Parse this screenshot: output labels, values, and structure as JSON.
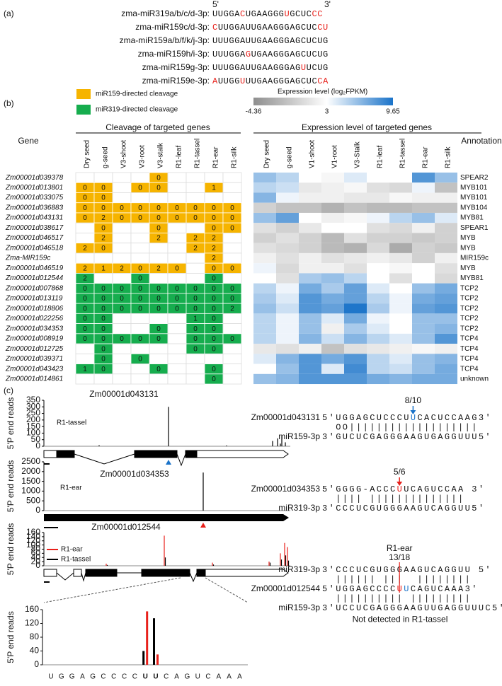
{
  "panel_a": {
    "label": "(a)",
    "five_prime": "5'",
    "three_prime": "3'",
    "highlight_color": "#e8201a",
    "rows": [
      {
        "name": "zma-miR319a/b/c/d-3p:",
        "sequence": "UUGGACUGAAGGGUGCUCCC",
        "highlight": [
          5,
          13,
          18,
          19
        ]
      },
      {
        "name": "zma-miR159c/d-3p:",
        "sequence": "CUUGGAUUGAAGGGAGCUCCU",
        "highlight": [
          0,
          19,
          20
        ]
      },
      {
        "name": "zma-miR159a/b/f/k/j-3p:",
        "sequence": "UUUGGAUUGAAGGGAGCUCUG",
        "highlight": []
      },
      {
        "name": "zma-miR159h/i-3p:",
        "sequence": "UUUGGAGUGAAGGGAGCUCUG",
        "highlight": [
          6
        ]
      },
      {
        "name": "zma-miR159g-3p:",
        "sequence": "UUUGGAUUGAAGGGAGUUCUG",
        "highlight": [
          16
        ]
      },
      {
        "name": "zma-miR159e-3p:",
        "sequence": "AUUGGUUUGAAGGGAGCUCCA",
        "highlight": [
          0,
          5,
          19,
          20
        ]
      }
    ]
  },
  "panel_b": {
    "label": "(b)",
    "legend": [
      {
        "label": "miR159-directed cleavage",
        "color": "#f6b400"
      },
      {
        "label": "miR319-directed cleavage",
        "color": "#16ad4e"
      }
    ],
    "scale": {
      "title": "Expression level (log₂FPKM)",
      "min": -4.36,
      "mid": 3,
      "max": 9.65,
      "colors": [
        "#8e8e8e",
        "#ffffff",
        "#1a73c9"
      ]
    },
    "gene_header": "Gene",
    "cleavage_header": "Cleavage of targeted genes",
    "expression_header": "Expression level of targeted genes",
    "annotation_header": "Annotation",
    "cleavage_columns": [
      "Dry seed",
      "g-seed",
      "V3-shoot",
      "V3-root",
      "V3-stalk",
      "R1-leaf",
      "R1-tassel",
      "R1-ear",
      "R1-silk"
    ],
    "expression_columns": [
      "Dry seed",
      "g-seed",
      "V1-shoot",
      "V1-root",
      "V3-Stalk",
      "R1-leaf",
      "R1-tassel",
      "R1-ear",
      "R1-silk"
    ],
    "rows": [
      {
        "gene": "Zm00001d039378",
        "color": "#f6b400",
        "cleavage": [
          null,
          null,
          null,
          null,
          0,
          null,
          null,
          null,
          null
        ],
        "expression": [
          6,
          5,
          3,
          2.5,
          4,
          3,
          3,
          8,
          6
        ],
        "annotation": "SPEAR2"
      },
      {
        "gene": "Zm00001d013801",
        "color": "#f6b400",
        "cleavage": [
          0,
          0,
          null,
          0,
          0,
          null,
          null,
          1,
          null
        ],
        "expression": [
          5,
          4.5,
          1.5,
          2,
          2.5,
          1,
          0.5,
          3.5,
          -1
        ],
        "annotation": "MYB101"
      },
      {
        "gene": "Zm00001d033075",
        "color": "#f6b400",
        "cleavage": [
          0,
          0,
          null,
          null,
          null,
          null,
          null,
          null,
          null
        ],
        "expression": [
          6.5,
          3.5,
          2,
          2,
          1.5,
          1.5,
          2.5,
          2,
          2
        ],
        "annotation": "MYB101"
      },
      {
        "gene": "Zm00001d036883",
        "color": "#f6b400",
        "cleavage": [
          0,
          0,
          0,
          0,
          0,
          0,
          0,
          0,
          0
        ],
        "expression": [
          0,
          -1,
          -1,
          -2,
          -1,
          -1.5,
          -1.5,
          -1,
          -1
        ],
        "annotation": "MYB104"
      },
      {
        "gene": "Zm00001d043131",
        "color": "#f6b400",
        "cleavage": [
          0,
          2,
          0,
          0,
          0,
          0,
          0,
          0,
          0
        ],
        "expression": [
          6,
          7.5,
          3,
          2,
          2.5,
          3.5,
          5,
          6,
          4
        ],
        "annotation": "MYB81"
      },
      {
        "gene": "Zm00001d038617",
        "color": "#f6b400",
        "cleavage": [
          null,
          0,
          null,
          null,
          0,
          null,
          null,
          0,
          0
        ],
        "expression": [
          1,
          0,
          1.5,
          3,
          3,
          1,
          0.5,
          2,
          0
        ],
        "annotation": "SPEAR1"
      },
      {
        "gene": "Zm00001d046517",
        "color": "#f6b400",
        "cleavage": [
          null,
          2,
          null,
          null,
          2,
          null,
          2,
          2,
          null
        ],
        "expression": [
          0,
          1,
          0,
          -1.5,
          1,
          0,
          0,
          -0.5,
          0
        ],
        "annotation": "MYB"
      },
      {
        "gene": "Zm00001d046518",
        "color": "#f6b400",
        "cleavage": [
          2,
          0,
          null,
          null,
          null,
          null,
          2,
          2,
          null
        ],
        "expression": [
          1,
          0.5,
          0,
          -1.5,
          -2,
          0.5,
          -2.5,
          0,
          -0.5
        ],
        "annotation": "MYB"
      },
      {
        "gene": "Zma-MIR159c",
        "color": "#f6b400",
        "cleavage": [
          null,
          null,
          null,
          null,
          null,
          null,
          null,
          2,
          null
        ],
        "expression": [
          2,
          1,
          2,
          1,
          1.5,
          2,
          1.5,
          0,
          2
        ],
        "annotation": "MIR159c"
      },
      {
        "gene": "Zm00001d046519",
        "color": "#f6b400",
        "cleavage": [
          2,
          1,
          2,
          0,
          2,
          0,
          null,
          0,
          0
        ],
        "expression": [
          3.5,
          0.5,
          2,
          2,
          1,
          3,
          2.5,
          3,
          1
        ],
        "annotation": "MYB"
      },
      {
        "gene": "Zm00001d012544",
        "color": "#16ad4e",
        "cleavage": [
          2,
          null,
          null,
          0,
          null,
          null,
          null,
          0,
          null
        ],
        "expression": [
          3,
          1,
          5.5,
          6,
          5,
          3,
          1,
          3,
          0.5
        ],
        "annotation": "MYB81"
      },
      {
        "gene": "Zm00001d007868",
        "color": "#16ad4e",
        "cleavage": [
          0,
          0,
          0,
          0,
          0,
          0,
          0,
          0,
          0
        ],
        "expression": [
          5,
          3.5,
          7,
          5.5,
          7.5,
          4,
          3,
          6,
          7
        ],
        "annotation": "TCP2"
      },
      {
        "gene": "Zm00001d013119",
        "color": "#16ad4e",
        "cleavage": [
          0,
          0,
          0,
          0,
          0,
          0,
          0,
          0,
          0
        ],
        "expression": [
          5.5,
          4,
          8,
          7,
          7.5,
          5,
          3.5,
          7,
          7.5
        ],
        "annotation": "TCP2"
      },
      {
        "gene": "Zm00001d018806",
        "color": "#16ad4e",
        "cleavage": [
          0,
          0,
          0,
          0,
          0,
          0,
          0,
          0,
          2
        ],
        "expression": [
          6,
          4.5,
          8,
          7.5,
          9.5,
          5.5,
          3.5,
          7.5,
          8
        ],
        "annotation": "TCP2"
      },
      {
        "gene": "Zm00001d022256",
        "color": "#16ad4e",
        "cleavage": [
          0,
          0,
          null,
          null,
          null,
          null,
          1,
          0,
          null
        ],
        "expression": [
          5,
          3.5,
          6,
          4,
          7,
          3.5,
          3,
          6,
          6
        ],
        "annotation": "TCP2"
      },
      {
        "gene": "Zm00001d034353",
        "color": "#16ad4e",
        "cleavage": [
          0,
          0,
          null,
          null,
          0,
          null,
          0,
          0,
          null
        ],
        "expression": [
          5,
          3.5,
          6,
          2,
          5.5,
          4,
          3,
          6,
          6.5
        ],
        "annotation": "TCP2"
      },
      {
        "gene": "Zm00001d008919",
        "color": "#16ad4e",
        "cleavage": [
          0,
          0,
          0,
          0,
          0,
          null,
          0,
          0,
          0
        ],
        "expression": [
          5,
          3.5,
          6.5,
          4.5,
          6.5,
          5,
          4,
          6,
          8
        ],
        "annotation": "TCP4"
      },
      {
        "gene": "Zm00001d012725",
        "color": "#16ad4e",
        "cleavage": [
          null,
          0,
          null,
          null,
          null,
          null,
          0,
          0,
          null
        ],
        "expression": [
          1.5,
          1,
          2,
          -1,
          1,
          1.5,
          2,
          2.5,
          2
        ],
        "annotation": "TCP4"
      },
      {
        "gene": "Zm00001d039371",
        "color": "#16ad4e",
        "cleavage": [
          null,
          0,
          null,
          0,
          null,
          null,
          null,
          null,
          null
        ],
        "expression": [
          4,
          6.5,
          8,
          7,
          8,
          5,
          4,
          6,
          6.5
        ],
        "annotation": "TCP4"
      },
      {
        "gene": "Zm00001d043423",
        "color": "#16ad4e",
        "cleavage": [
          1,
          0,
          null,
          null,
          0,
          null,
          null,
          0,
          null
        ],
        "expression": [
          3,
          6,
          8,
          4,
          8.5,
          5,
          4.5,
          6,
          7
        ],
        "annotation": "TCP4"
      },
      {
        "gene": "Zm00001d014861",
        "color": "#16ad4e",
        "cleavage": [
          null,
          null,
          null,
          null,
          null,
          null,
          null,
          0,
          null
        ],
        "expression": [
          6,
          6.5,
          8,
          8,
          8,
          7,
          6.5,
          7,
          7
        ],
        "annotation": "unknown"
      }
    ]
  },
  "panel_c": {
    "label": "(c)",
    "y_label": "5'P end reads",
    "plots": [
      {
        "title": "Zm00001d043131",
        "sample": "R1-tassel",
        "ylim": [
          0,
          350
        ],
        "yticks": [
          0,
          50,
          100,
          150,
          200,
          250,
          300,
          350
        ],
        "color": "#000000",
        "values": [
          300,
          8,
          6,
          40,
          60,
          80,
          30,
          20
        ]
      },
      {
        "title": "Zm00001d034353",
        "sample": "R1-ear",
        "ylim": [
          0,
          2500
        ],
        "yticks": [
          0,
          500,
          1000,
          1500,
          2000,
          2500
        ],
        "color": "#000000",
        "values": [
          1950
        ]
      },
      {
        "title": "Zm00001d012544",
        "ylim": [
          0,
          160
        ],
        "yticks": [
          0,
          20,
          40,
          60,
          80,
          100,
          120,
          140,
          160
        ],
        "series": [
          {
            "name": "R1-ear",
            "color": "#e8201a",
            "values": [
              10,
              145,
              15,
              20,
              60,
              110,
              90
            ]
          },
          {
            "name": "R1-tassel",
            "color": "#000000",
            "values": [
              4,
              40,
              6,
              15,
              30,
              50,
              25
            ]
          }
        ]
      }
    ],
    "inset": {
      "ylim": [
        0,
        160
      ],
      "yticks": [
        0,
        40,
        80,
        120,
        160
      ],
      "categories": [
        "U",
        "G",
        "G",
        "A",
        "G",
        "C",
        "C",
        "C",
        "C",
        "U",
        "U",
        "C",
        "A",
        "G",
        "U",
        "C",
        "A",
        "A",
        "A"
      ],
      "letter_highlights": [
        {
          "index": 9,
          "color": "#e8201a"
        },
        {
          "index": 10,
          "color": "#1a73c9"
        }
      ],
      "series": [
        {
          "color": "#000000",
          "values": [
            null,
            null,
            null,
            null,
            null,
            null,
            null,
            null,
            null,
            40,
            135,
            null,
            null,
            null,
            null,
            null,
            null,
            null,
            null
          ]
        },
        {
          "color": "#e8201a",
          "values": [
            null,
            null,
            null,
            null,
            null,
            null,
            null,
            null,
            null,
            155,
            30,
            null,
            null,
            null,
            null,
            null,
            null,
            null,
            null
          ]
        }
      ]
    },
    "alignments": [
      {
        "ratio": "8/10",
        "arrow_color": "#1a73c9",
        "arrow_index": 13,
        "target": 0,
        "lines": [
          {
            "name": "Zm00001d043131",
            "text": "5'UGGAGCUCCCUUCACUCCAAG3'",
            "highlights": [
              {
                "index": 13,
                "color": "#1a73c9"
              }
            ]
          },
          {
            "text": "  OO|||||||||||||||||||"
          },
          {
            "name": "miR159-3p",
            "text": "3'GUCUCGAGGGAAGUGAGGUUU5'"
          }
        ]
      },
      {
        "ratio": "5/6",
        "arrow_color": "#e8201a",
        "arrow_index": 11,
        "target": 0,
        "lines": [
          {
            "name": "Zm00001d034353",
            "text": "5'GGGG-ACCCUUCAGUCCAA 3'",
            "highlights": [
              {
                "index": 11,
                "color": "#e8201a"
              }
            ]
          },
          {
            "text": "  |||| ||||||||||||||"
          },
          {
            "name": "miR319-3p",
            "text": "3'CCCUCGUGGGAAGUCAGGUU5'"
          }
        ]
      },
      {
        "sample": "R1-ear",
        "ratio": "13/18",
        "arrow_color": "#e8201a",
        "arrow_index": 11,
        "target": 2,
        "lines": [
          {
            "name": "miR319-3p",
            "text": "3'CCCUCGUGGGAAGUCAGGUU 5'"
          },
          {
            "text": "  |||||| |||  ||||||||"
          },
          {
            "name": "Zm00001d012544",
            "text": "5'UGGAGCCCCUUCAGUCAAA3'",
            "highlights": [
              {
                "index": 11,
                "color": "#e8201a"
              },
              {
                "index": 12,
                "color": "#1a73c9"
              }
            ]
          },
          {
            "text": "  |||||||||| |||||||||"
          },
          {
            "name": "miR159-3p",
            "text": "3'UCCUCGAGGGAAGUUGAGGUUUC5'"
          }
        ],
        "note": "Not detected in R1-tassel"
      }
    ]
  }
}
